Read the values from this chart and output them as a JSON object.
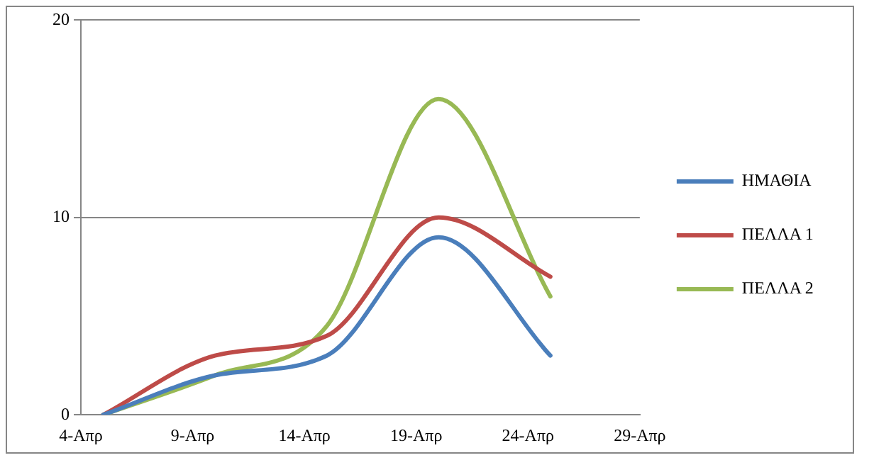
{
  "chart_data": {
    "type": "line",
    "x": [
      "--04-05",
      "--04-10",
      "--04-15",
      "--04-20",
      "--04-25"
    ],
    "series": [
      {
        "name": "ΗΜΑΘΙΑ",
        "color": "#4a7ebb",
        "values": [
          0,
          2,
          3,
          9,
          3
        ]
      },
      {
        "name": "ΠΕΛΛΑ 1",
        "color": "#be4b48",
        "values": [
          0,
          3,
          4,
          10,
          7
        ]
      },
      {
        "name": "ΠΕΛΛΑ 2",
        "color": "#98b954",
        "values": [
          0,
          2,
          4.5,
          16,
          6
        ]
      }
    ],
    "xlim": [
      "--04-04",
      "--04-29"
    ],
    "xticks": [
      {
        "value": "--04-04",
        "label": "4-Απρ"
      },
      {
        "value": "--04-09",
        "label": "9-Απρ"
      },
      {
        "value": "--04-14",
        "label": "14-Απρ"
      },
      {
        "value": "--04-19",
        "label": "19-Απρ"
      },
      {
        "value": "--04-24",
        "label": "24-Απρ"
      },
      {
        "value": "--04-29",
        "label": "29-Απρ"
      }
    ],
    "ylim": [
      0,
      20
    ],
    "yticks": [
      0,
      10,
      20
    ],
    "grid": "y",
    "legend": "right",
    "marker": "none",
    "line_style": "solid"
  }
}
